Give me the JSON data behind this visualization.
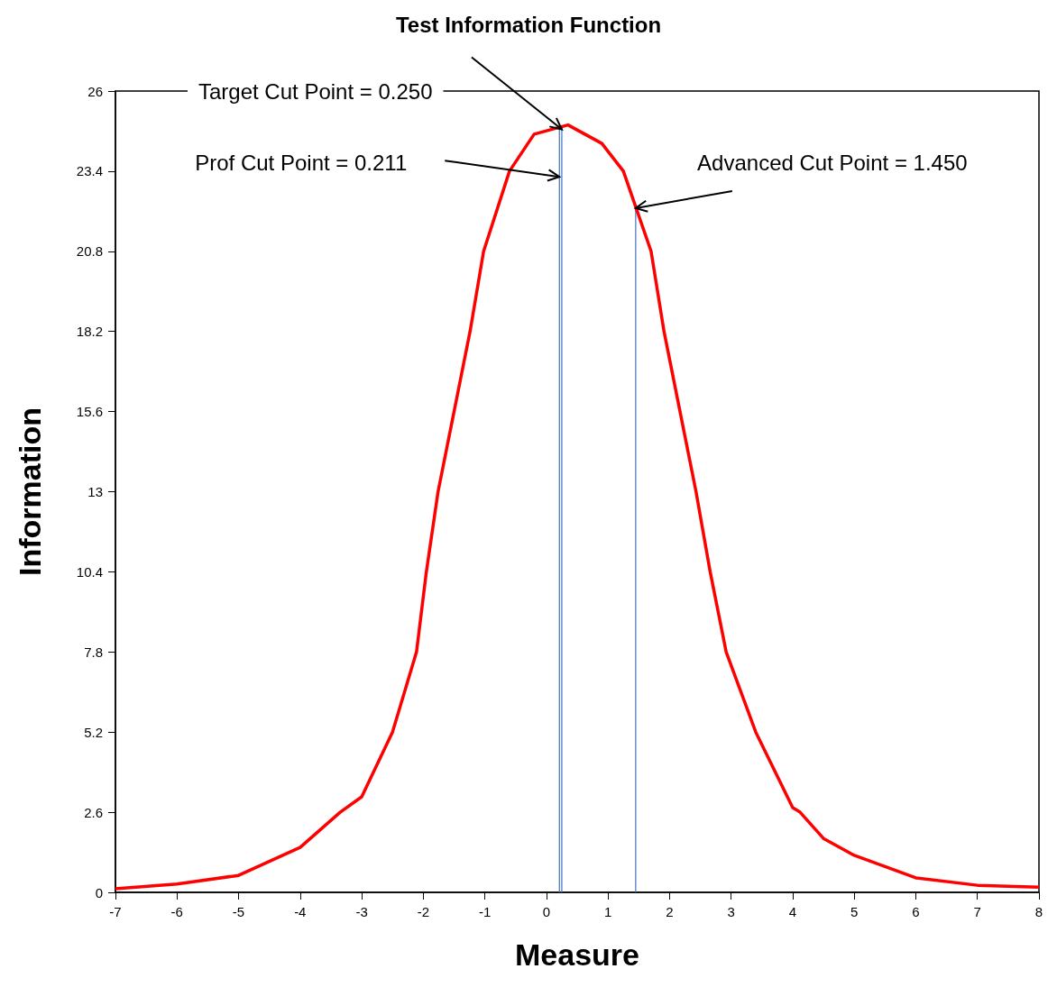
{
  "chart_data": {
    "type": "line",
    "title": "Test Information Function",
    "xlabel": "Measure",
    "ylabel": "Information",
    "series": [
      {
        "color": "#ff0000",
        "x": [
          -7,
          -6,
          -5,
          -4,
          -3.35,
          -3,
          -2.5,
          -2.11,
          -1.95,
          -1.76,
          -1.5,
          -1.24,
          -1.02,
          -0.6,
          -0.2,
          0.35,
          0.9,
          1.25,
          1.7,
          1.91,
          2.17,
          2.43,
          2.66,
          2.92,
          3.4,
          4,
          4.12,
          4.5,
          5,
          6,
          7,
          8
        ],
        "values": [
          0.12,
          0.27,
          0.55,
          1.46,
          2.6,
          3.1,
          5.2,
          7.8,
          10.4,
          13,
          15.6,
          18.2,
          20.8,
          23.4,
          24.6,
          24.9,
          24.3,
          23.4,
          20.8,
          18.2,
          15.6,
          13,
          10.4,
          7.8,
          5.2,
          2.75,
          2.6,
          1.75,
          1.2,
          0.47,
          0.23,
          0.17
        ]
      }
    ],
    "xlim": [
      -7,
      8
    ],
    "xticks": [
      -7,
      -6,
      -5,
      -4,
      -3,
      -2,
      -1,
      0,
      1,
      2,
      3,
      4,
      5,
      6,
      7,
      8
    ],
    "ylim": [
      0,
      26
    ],
    "yticks": [
      0,
      2.6,
      5.2,
      7.8,
      10.4,
      13,
      15.6,
      18.2,
      20.8,
      23.4,
      26
    ],
    "ref_lines": [
      {
        "axis": "x",
        "value": 0.211,
        "color": "#4472c4"
      },
      {
        "axis": "x",
        "value": 0.25,
        "color": "#4472c4"
      },
      {
        "axis": "x",
        "value": 1.45,
        "color": "#4472c4"
      }
    ],
    "annotations": [
      "Prof Cut Point = 0.211",
      "Target Cut Point = 0.250",
      {
        "text": "Advanced Cut Point = 1.450",
        "x": 1.45,
        "y": 22.2
      }
    ],
    "grid": false,
    "marker": "none",
    "line_style": "solid"
  }
}
